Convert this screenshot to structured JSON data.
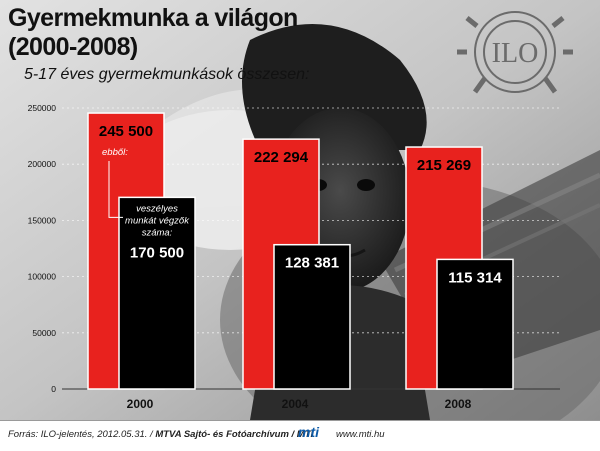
{
  "header": {
    "title_line1": "Gyermekmunka a világon",
    "title_line2": "(2000-2008)",
    "subtitle": "5-17 éves gyermekmunkások összesen:"
  },
  "logo": {
    "text": "ILO",
    "icon": "ilo-gear-logo-icon"
  },
  "chart_data": {
    "type": "bar",
    "title": "Gyermekmunka a világon (2000-2008)",
    "subtitle": "5-17 éves gyermekmunkások összesen:",
    "categories": [
      "2000",
      "2004",
      "2008"
    ],
    "series": [
      {
        "values": [
          245500,
          222294,
          215269
        ],
        "labels": [
          "245 500",
          "222 294",
          "215 269"
        ],
        "color": "#e8221e"
      },
      {
        "values": [
          170500,
          128381,
          115314
        ],
        "labels": [
          "170 500",
          "128 381",
          "115 314"
        ],
        "color": "#000000"
      }
    ],
    "yticks": [
      "0",
      "50000",
      "100000",
      "150000",
      "200000",
      "250000"
    ],
    "ylim": [
      0,
      250000
    ],
    "grid": true,
    "annotations": {
      "red_bar_note": "ebből:",
      "black_bar_note_lines": [
        "veszélyes",
        "munkát végzők",
        "száma:"
      ]
    }
  },
  "footer": {
    "source_prefix": "Forrás: ILO-jelentés, 2012.05.31. / ",
    "source_bold": "MTVA Sajtó- és Fotóarchívum / MTI",
    "mti_logo_text": "mti",
    "mti_url": "www.mti.hu"
  },
  "colors": {
    "red": "#e8221e",
    "black": "#000000",
    "red_bar_text": "#000000",
    "black_bar_text": "#ffffff",
    "note_text": "#ffffff",
    "mti_blue": "#0d5aa7"
  }
}
